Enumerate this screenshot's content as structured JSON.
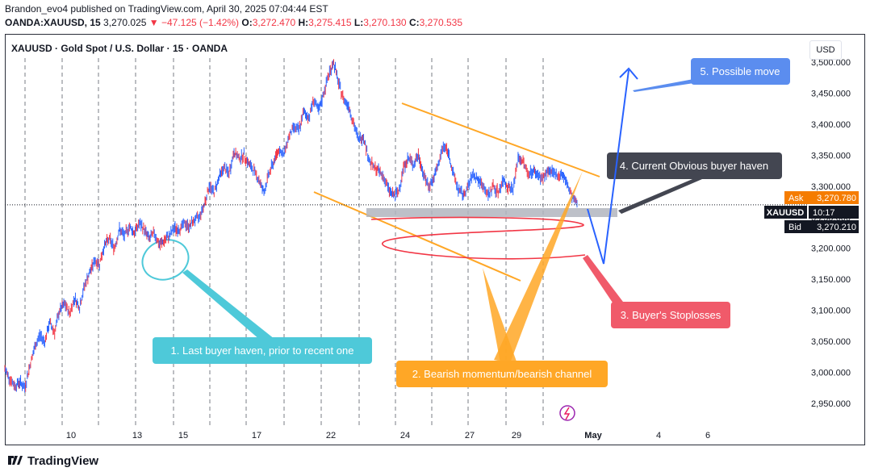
{
  "header": {
    "line1": "Brandon_evo4 published on TradingView.com, April 30, 2025 07:04:44 EST",
    "symbol": "OANDA:XAUUSD, 15",
    "last": "3,270.025",
    "change": "▼ −47.125 (−1.42%)",
    "o_label": "O:",
    "o_val": "3,272.470",
    "h_label": "H:",
    "h_val": "3,275.415",
    "l_label": "L:",
    "l_val": "3,270.130",
    "c_label": "C:",
    "c_val": "3,270.535"
  },
  "chart_title": "XAUUSD · Gold Spot / U.S. Dollar · 15 · OANDA",
  "currency_button": "USD",
  "price_tags": {
    "ask_label": "Ask",
    "ask_value": "3,270.780",
    "sym_label": "XAUUSD",
    "countdown": "10:17",
    "bid_label": "Bid",
    "bid_value": "3,270.210"
  },
  "footer_brand": "TradingView",
  "colors": {
    "candle": "#2962ff",
    "bearish_candle": "#f23645",
    "cyan": "#4ec9d9",
    "orange": "#ffa726",
    "dark": "#434651",
    "red": "#f05a6a",
    "blue": "#5b8def",
    "move_line": "#2962ff"
  },
  "chart_data": {
    "type": "line",
    "ylim": [
      2915,
      3535
    ],
    "y_ticks": [
      2950,
      3000,
      3050,
      3100,
      3150,
      3200,
      3250,
      3300,
      3350,
      3400,
      3450,
      3500
    ],
    "y_tick_labels": [
      "2,950.000",
      "3,000.000",
      "3,050.000",
      "3,100.000",
      "3,150.000",
      "3,200.000",
      "3,250.000",
      "3,300.000",
      "3,350.000",
      "3,400.000",
      "3,450.000",
      "3,500.000"
    ],
    "x_tick_labels": [
      "10",
      "13",
      "15",
      "17",
      "22",
      "24",
      "27",
      "29",
      "May",
      "4",
      "6"
    ],
    "series": [
      {
        "values": [
          3005,
          2990,
          2978,
          2985,
          2975,
          3010,
          3040,
          3060,
          3050,
          3080,
          3065,
          3100,
          3110,
          3095,
          3120,
          3105,
          3140,
          3160,
          3180,
          3175,
          3205,
          3215,
          3200,
          3230,
          3220,
          3235,
          3225,
          3240,
          3230,
          3215,
          3225,
          3205,
          3212,
          3220,
          3232,
          3230,
          3240,
          3235,
          3245,
          3250,
          3270,
          3300,
          3290,
          3315,
          3330,
          3320,
          3355,
          3345,
          3350,
          3335,
          3325,
          3310,
          3290,
          3320,
          3340,
          3360,
          3350,
          3380,
          3395,
          3390,
          3420,
          3410,
          3440,
          3420,
          3450,
          3480,
          3500,
          3465,
          3440,
          3430,
          3400,
          3375,
          3380,
          3345,
          3330,
          3325,
          3315,
          3295,
          3285,
          3290,
          3330,
          3345,
          3335,
          3350,
          3320,
          3300,
          3310,
          3335,
          3365,
          3355,
          3320,
          3295,
          3285,
          3300,
          3320,
          3310,
          3300,
          3285,
          3300,
          3290,
          3310,
          3300,
          3295,
          3345,
          3340,
          3320,
          3325,
          3318,
          3312,
          3325,
          3320,
          3318,
          3318,
          3300,
          3280,
          3270
        ]
      }
    ],
    "current_price": 3270.025,
    "annotations": [
      "1. Last buyer haven, prior to recent one",
      "2. Bearish momentum/bearish channel",
      "3. Buyer's Stoplosses",
      "4. Current Obvious buyer haven",
      "5. Possible move"
    ]
  }
}
